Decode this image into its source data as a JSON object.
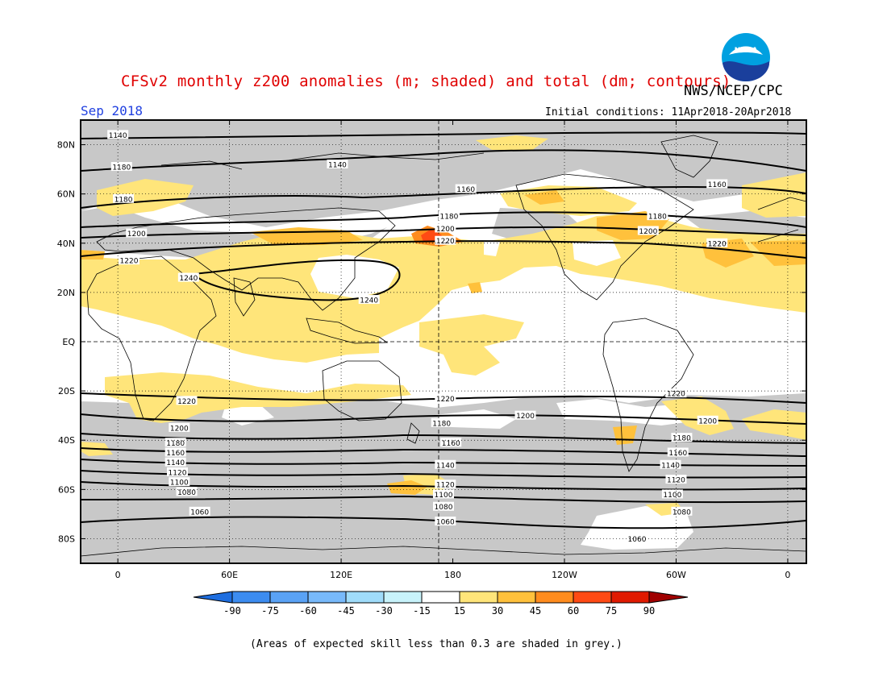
{
  "header": {
    "title": "CFSv2 monthly z200 anomalies (m; shaded) and total (dm; contours)",
    "agency": "NWS/NCEP/CPC",
    "month": "Sep 2018",
    "initial_conditions": "Initial conditions: 11Apr2018-20Apr2018",
    "logo_text": "NOAA"
  },
  "map": {
    "lat_labels": [
      "80N",
      "60N",
      "40N",
      "20N",
      "EQ",
      "20S",
      "40S",
      "60S",
      "80S"
    ],
    "lat_values": [
      80,
      60,
      40,
      20,
      0,
      -20,
      -40,
      -60,
      -80
    ],
    "lon_labels": [
      "0",
      "60E",
      "120E",
      "180",
      "120W",
      "60W",
      "0"
    ],
    "lon_values": [
      0,
      60,
      120,
      180,
      240,
      300,
      360
    ],
    "lon_range": [
      -20,
      370
    ],
    "lat_range": [
      -90,
      90
    ],
    "contour_labels": [
      {
        "text": "1140",
        "lon": 0,
        "lat": 84
      },
      {
        "text": "1140",
        "lon": 118,
        "lat": 72
      },
      {
        "text": "1180",
        "lon": 2,
        "lat": 71
      },
      {
        "text": "1160",
        "lon": 187,
        "lat": 62
      },
      {
        "text": "1160",
        "lon": 322,
        "lat": 64
      },
      {
        "text": "1180",
        "lon": 3,
        "lat": 58
      },
      {
        "text": "1180",
        "lon": 178,
        "lat": 51
      },
      {
        "text": "1180",
        "lon": 290,
        "lat": 51
      },
      {
        "text": "1200",
        "lon": 10,
        "lat": 44
      },
      {
        "text": "1200",
        "lon": 176,
        "lat": 46
      },
      {
        "text": "1200",
        "lon": 285,
        "lat": 45
      },
      {
        "text": "1220",
        "lon": 176,
        "lat": 41
      },
      {
        "text": "1220",
        "lon": 322,
        "lat": 40
      },
      {
        "text": "1220",
        "lon": 6,
        "lat": 33
      },
      {
        "text": "1240",
        "lon": 38,
        "lat": 26
      },
      {
        "text": "1240",
        "lon": 135,
        "lat": 17
      },
      {
        "text": "1220",
        "lon": 37,
        "lat": -24
      },
      {
        "text": "1220",
        "lon": 176,
        "lat": -23
      },
      {
        "text": "1220",
        "lon": 300,
        "lat": -21
      },
      {
        "text": "1200",
        "lon": 33,
        "lat": -35
      },
      {
        "text": "1200",
        "lon": 219,
        "lat": -30
      },
      {
        "text": "1200",
        "lon": 317,
        "lat": -32
      },
      {
        "text": "1180",
        "lon": 174,
        "lat": -33
      },
      {
        "text": "1180",
        "lon": 31,
        "lat": -41
      },
      {
        "text": "1180",
        "lon": 303,
        "lat": -39
      },
      {
        "text": "1160",
        "lon": 179,
        "lat": -41
      },
      {
        "text": "1160",
        "lon": 31,
        "lat": -45
      },
      {
        "text": "1160",
        "lon": 301,
        "lat": -45
      },
      {
        "text": "1140",
        "lon": 31,
        "lat": -49
      },
      {
        "text": "1140",
        "lon": 176,
        "lat": -50
      },
      {
        "text": "1140",
        "lon": 297,
        "lat": -50
      },
      {
        "text": "1120",
        "lon": 32,
        "lat": -53
      },
      {
        "text": "1120",
        "lon": 176,
        "lat": -58
      },
      {
        "text": "1120",
        "lon": 300,
        "lat": -56
      },
      {
        "text": "1100",
        "lon": 33,
        "lat": -57
      },
      {
        "text": "1100",
        "lon": 175,
        "lat": -62
      },
      {
        "text": "1100",
        "lon": 298,
        "lat": -62
      },
      {
        "text": "1080",
        "lon": 37,
        "lat": -61
      },
      {
        "text": "1080",
        "lon": 175,
        "lat": -67
      },
      {
        "text": "1080",
        "lon": 303,
        "lat": -69
      },
      {
        "text": "1060",
        "lon": 44,
        "lat": -69
      },
      {
        "text": "1060",
        "lon": 176,
        "lat": -73
      },
      {
        "text": "1060",
        "lon": 279,
        "lat": -80
      }
    ]
  },
  "colorbar": {
    "labels": [
      "-90",
      "-75",
      "-60",
      "-45",
      "-30",
      "-15",
      "15",
      "30",
      "45",
      "60",
      "75",
      "90"
    ],
    "colors": [
      "#1e6ee0",
      "#3c8cf0",
      "#5aa2f5",
      "#78b9fa",
      "#a0dcfa",
      "#c8f3fb",
      "#ffffff",
      "#ffe57a",
      "#ffc13c",
      "#ff8c1e",
      "#ff4a14",
      "#e01a00",
      "#a00000"
    ]
  },
  "footnote": "(Areas of expected skill less than 0.3 are shaded in grey.)"
}
